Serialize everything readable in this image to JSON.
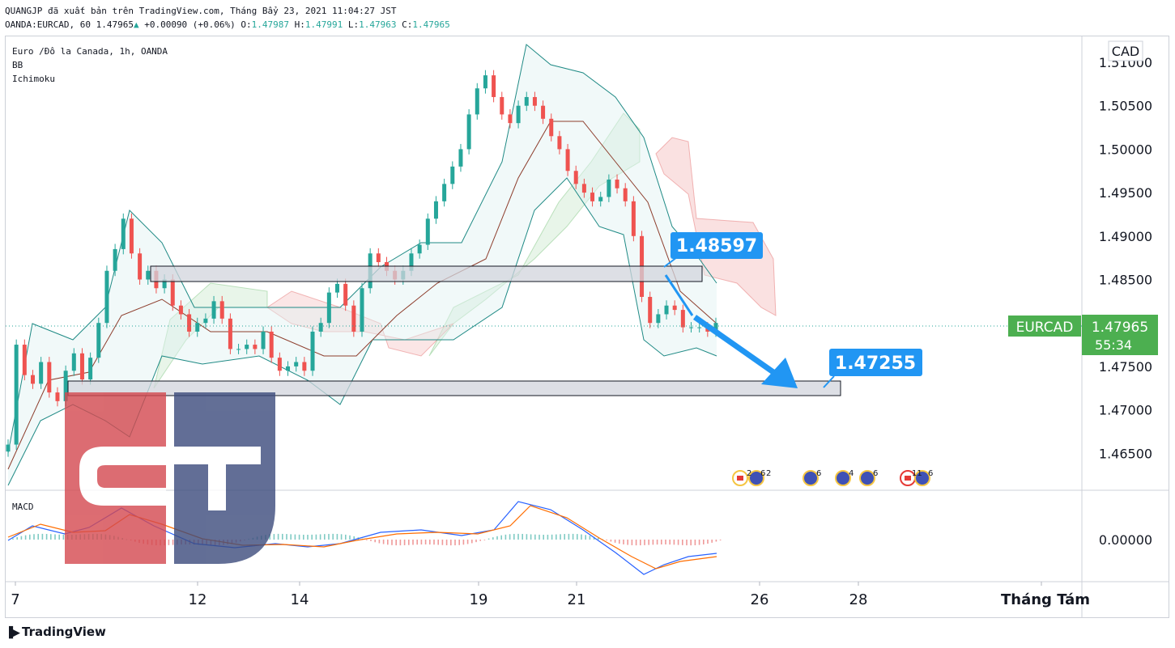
{
  "header": {
    "publish_line": "QUANGJP đã xuất bản trên TradingView.com, Tháng Bẩy 23, 2021 11:04:27 JST",
    "symbol_line_prefix": "OANDA:EURCAD, 60 1.47965",
    "change_text": "+0.00090 (+0.06%)",
    "o_label": "O:",
    "o_value": "1.47987",
    "h_label": "H:",
    "h_value": "1.47991",
    "l_label": "L:",
    "l_value": "1.47963",
    "c_label": "C:",
    "c_value": "1.47965"
  },
  "legend": {
    "title": "Euro /Đô la Canada, 1h, OANDA",
    "ind1": "BB",
    "ind2": "Ichimoku",
    "macd": "MACD"
  },
  "currency_label": "CAD",
  "price_badge": {
    "symbol": "EURCAD",
    "price": "1.47965",
    "countdown": "55:34"
  },
  "annotations": {
    "upper": "1.48597",
    "lower": "1.47255"
  },
  "events_numbers": [
    "2",
    "6",
    "2",
    "6",
    "4",
    "6",
    "11",
    "6"
  ],
  "branding": "TradingView",
  "colors": {
    "up": "#26a69a",
    "down": "#ef5350",
    "badge_green": "#4caf50",
    "callout": "#2196f3",
    "bb": "#1f8a85",
    "logo_red": "#d4484f",
    "logo_blue": "#3c4b7c"
  },
  "chart_data": {
    "type": "line",
    "title": "Euro /Đô la Canada, 1h, OANDA",
    "y_ticks": [
      "1.51000",
      "1.50500",
      "1.50000",
      "1.49500",
      "1.49000",
      "1.48500",
      "1.48000",
      "1.47500",
      "1.47000",
      "1.46500"
    ],
    "y_range": [
      1.4615,
      1.5118
    ],
    "x_ticks": [
      "7",
      "12",
      "14",
      "19",
      "21",
      "26",
      "28",
      "Tháng Tám"
    ],
    "macd_ticks": [
      "0.00000"
    ],
    "series": [
      {
        "values": [
          [
            0,
            1.466
          ],
          [
            1,
            1.4775
          ],
          [
            2,
            1.474
          ],
          [
            3,
            1.473
          ],
          [
            4,
            1.4755
          ],
          [
            5,
            1.472
          ],
          [
            6,
            1.471
          ],
          [
            7,
            1.4745
          ],
          [
            8,
            1.4765
          ],
          [
            9,
            1.4735
          ],
          [
            10,
            1.476
          ],
          [
            11,
            1.48
          ],
          [
            12,
            1.486
          ],
          [
            13,
            1.4885
          ],
          [
            14,
            1.492
          ],
          [
            15,
            1.488
          ],
          [
            16,
            1.485
          ],
          [
            17,
            1.486
          ],
          [
            18,
            1.484
          ],
          [
            19,
            1.485
          ],
          [
            20,
            1.482
          ],
          [
            21,
            1.481
          ],
          [
            22,
            1.479
          ],
          [
            23,
            1.48
          ],
          [
            24,
            1.4805
          ],
          [
            25,
            1.4825
          ],
          [
            26,
            1.4805
          ],
          [
            27,
            1.477
          ],
          [
            28,
            1.477
          ],
          [
            29,
            1.4775
          ],
          [
            30,
            1.477
          ],
          [
            31,
            1.479
          ],
          [
            32,
            1.476
          ],
          [
            33,
            1.4745
          ],
          [
            34,
            1.475
          ],
          [
            35,
            1.4755
          ],
          [
            36,
            1.4745
          ],
          [
            37,
            1.479
          ],
          [
            38,
            1.48
          ],
          [
            39,
            1.4835
          ],
          [
            40,
            1.4845
          ],
          [
            41,
            1.482
          ],
          [
            42,
            1.479
          ],
          [
            43,
            1.484
          ],
          [
            44,
            1.488
          ],
          [
            45,
            1.487
          ],
          [
            46,
            1.486
          ],
          [
            47,
            1.485
          ],
          [
            48,
            1.486
          ],
          [
            49,
            1.488
          ],
          [
            50,
            1.489
          ],
          [
            51,
            1.492
          ],
          [
            52,
            1.494
          ],
          [
            53,
            1.496
          ],
          [
            54,
            1.498
          ],
          [
            55,
            1.5
          ],
          [
            56,
            1.504
          ],
          [
            57,
            1.507
          ],
          [
            58,
            1.5085
          ],
          [
            59,
            1.506
          ],
          [
            60,
            1.504
          ],
          [
            61,
            1.503
          ],
          [
            62,
            1.505
          ],
          [
            63,
            1.506
          ],
          [
            64,
            1.505
          ],
          [
            65,
            1.5035
          ],
          [
            66,
            1.5015
          ],
          [
            67,
            1.5
          ],
          [
            68,
            1.4975
          ],
          [
            69,
            1.496
          ],
          [
            70,
            1.495
          ],
          [
            71,
            1.494
          ],
          [
            72,
            1.4945
          ],
          [
            73,
            1.4965
          ],
          [
            74,
            1.4955
          ],
          [
            75,
            1.494
          ],
          [
            76,
            1.49
          ],
          [
            77,
            1.483
          ],
          [
            78,
            1.48
          ],
          [
            79,
            1.481
          ],
          [
            80,
            1.482
          ],
          [
            81,
            1.4815
          ],
          [
            82,
            1.4795
          ],
          [
            83,
            1.4795
          ],
          [
            84,
            1.4795
          ],
          [
            85,
            1.479
          ],
          [
            86,
            1.48
          ]
        ]
      }
    ]
  }
}
